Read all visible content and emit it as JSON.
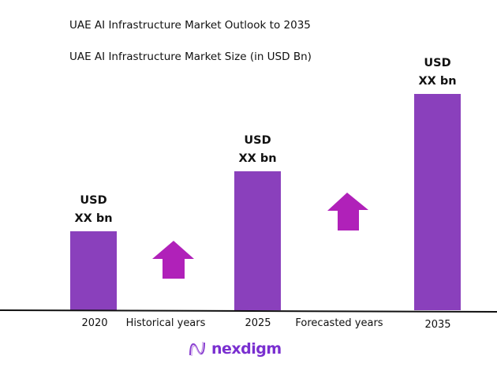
{
  "header": {
    "title": "UAE AI Infrastructure Market Outlook to 2035",
    "subtitle": "UAE AI Infrastructure Market Size (in USD Bn)"
  },
  "chart_data": {
    "type": "bar",
    "categories": [
      "2020",
      "2025",
      "2035"
    ],
    "values_relative": [
      100,
      176,
      274
    ],
    "data_labels": [
      [
        "USD",
        "XX bn"
      ],
      [
        "USD",
        "XX bn"
      ],
      [
        "USD",
        "XX bn"
      ]
    ],
    "annotations": [
      "Historical years",
      "Forecasted years"
    ],
    "grid": false,
    "legend": "none",
    "colors": {
      "bar": "#8A40BC",
      "arrow": "#B021B9",
      "axis": "#111111"
    }
  },
  "logo": {
    "text": "nexdigm"
  }
}
